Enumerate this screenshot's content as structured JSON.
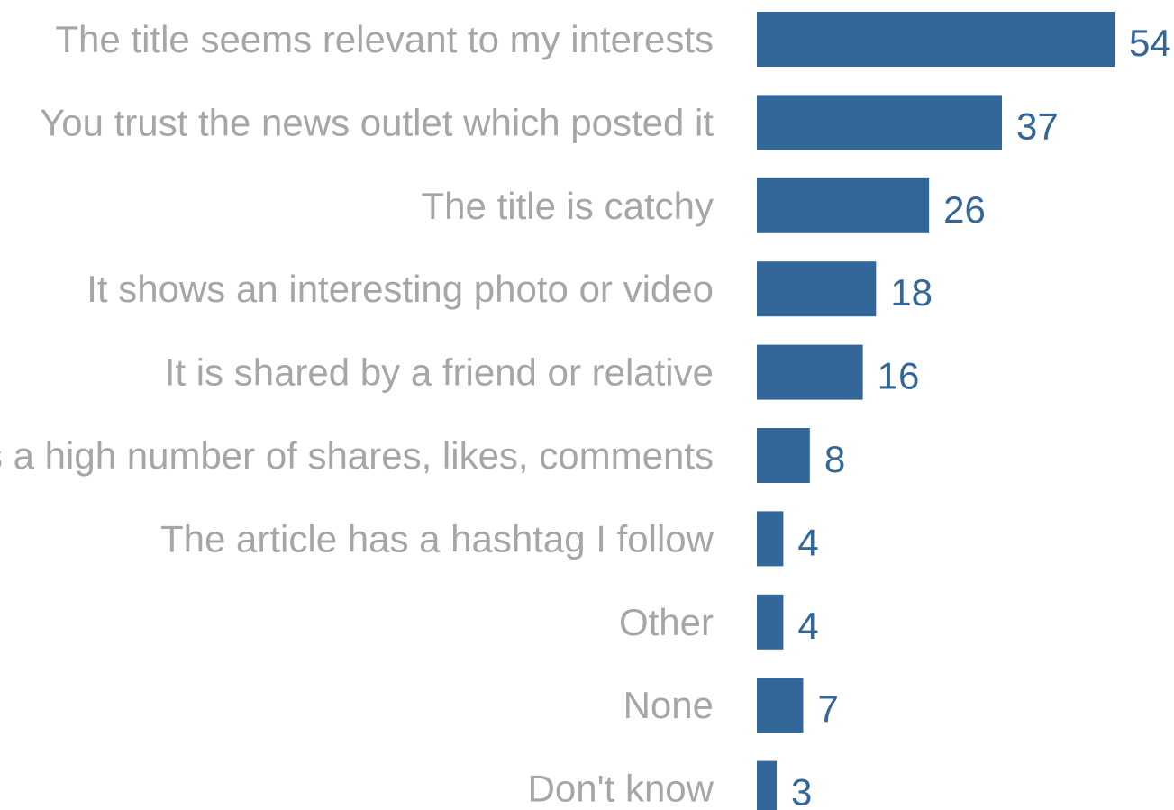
{
  "chart_data": {
    "type": "bar",
    "orientation": "horizontal",
    "categories": [
      "The title seems relevant to my interests",
      "You trust the news outlet which posted it",
      "The title is catchy",
      "It shows an interesting photo or video",
      "It is shared by a friend or relative",
      "It has a high number of shares, likes, comments",
      "The article has a hashtag I follow",
      "Other",
      "None",
      "Don't know"
    ],
    "values": [
      54,
      37,
      26,
      18,
      16,
      8,
      4,
      4,
      7,
      3
    ],
    "title": "",
    "xlabel": "",
    "ylabel": "",
    "xlim": [
      0,
      54
    ],
    "grid": false,
    "legend": "none",
    "data_labels": true,
    "colors": {
      "bar": "#336699",
      "value_label": "#336699",
      "category_label": "#a6a6a6",
      "background": "#ffffff"
    }
  }
}
